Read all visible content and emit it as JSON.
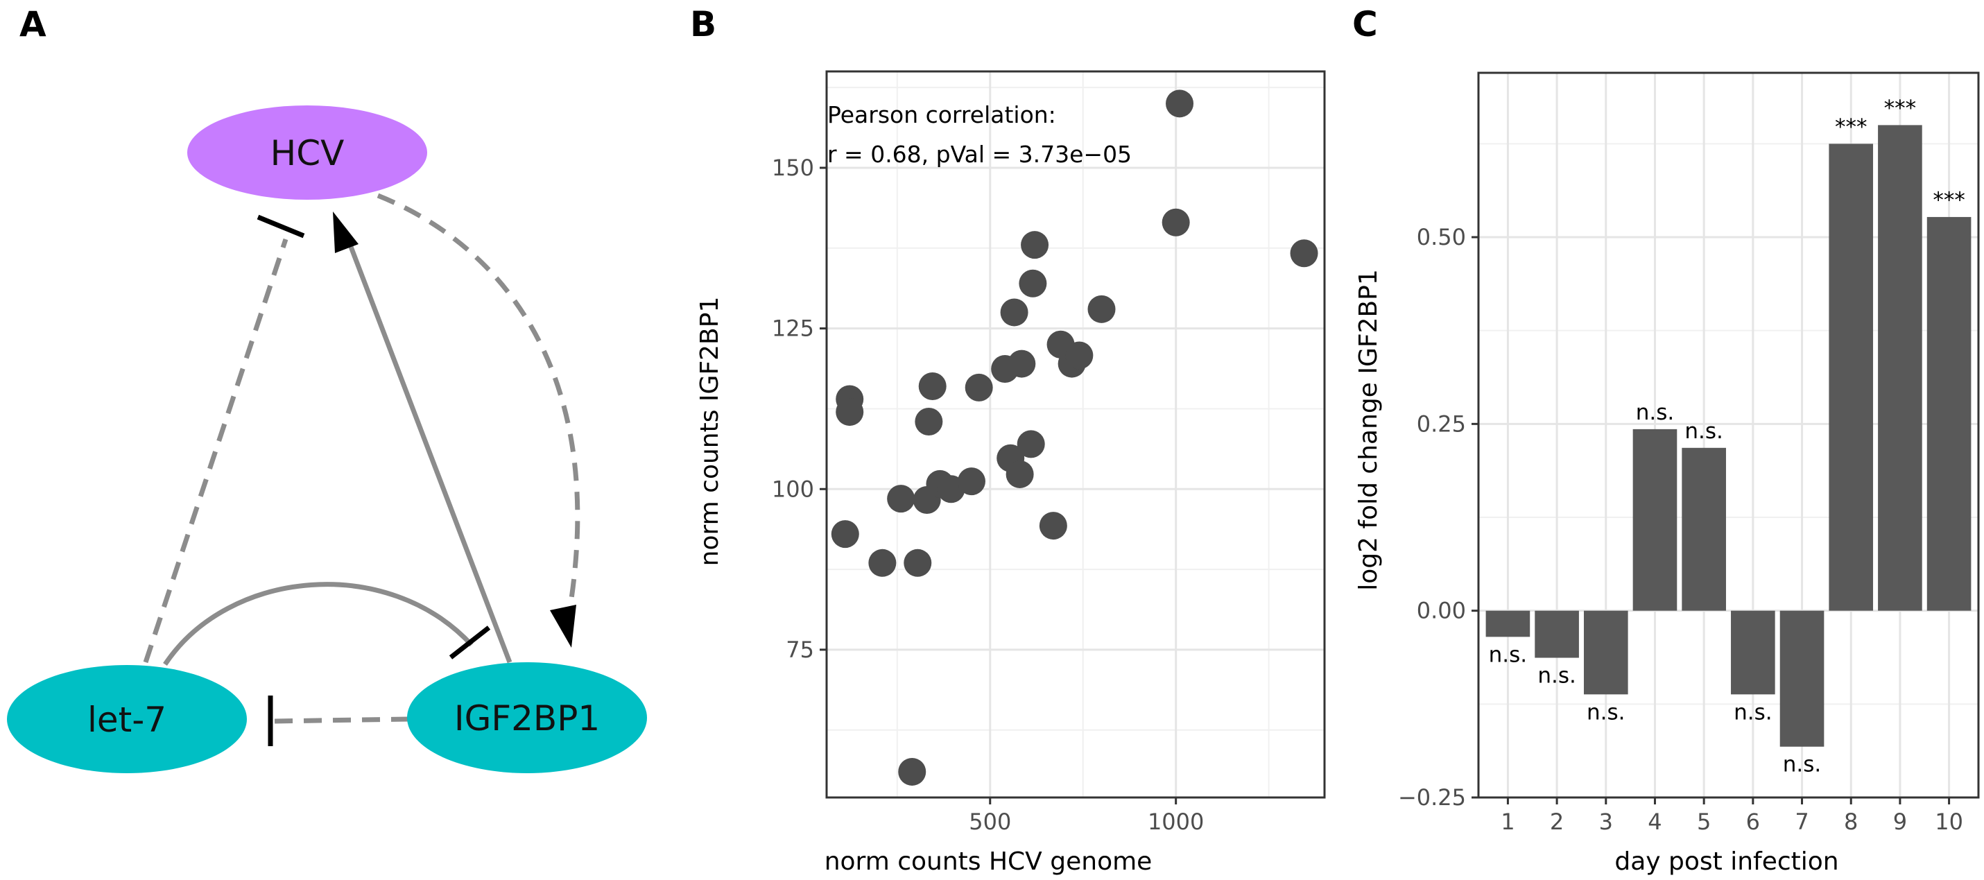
{
  "panels": {
    "a": {
      "letter": "A"
    },
    "b": {
      "letter": "B"
    },
    "c": {
      "letter": "C"
    }
  },
  "diagram": {
    "nodes": {
      "hcv": {
        "label": "HCV",
        "color": "#c77cff"
      },
      "let7": {
        "label": "let-7",
        "color": "#00bfc4"
      },
      "igf2bp1": {
        "label": "IGF2BP1",
        "color": "#00bfc4"
      }
    },
    "edge_color": "#8c8c8c",
    "edges": [
      {
        "from": "let-7",
        "to": "HCV",
        "style": "dashed",
        "type": "inhibition"
      },
      {
        "from": "HCV",
        "to": "IGF2BP1",
        "style": "dashed",
        "type": "activation"
      },
      {
        "from": "IGF2BP1",
        "to": "HCV",
        "style": "solid",
        "type": "activation"
      },
      {
        "from": "let-7",
        "to": "IGF2BP1",
        "style": "solid",
        "type": "inhibition"
      },
      {
        "from": "IGF2BP1",
        "to": "let-7",
        "style": "dashed",
        "type": "inhibition"
      }
    ]
  },
  "chart_data": [
    {
      "type": "scatter",
      "title": "",
      "xlabel": "norm counts HCV genome",
      "ylabel": "norm counts IGF2BP1",
      "xlim": [
        60,
        1400
      ],
      "ylim": [
        52,
        165
      ],
      "xticks": [
        500,
        1000
      ],
      "yticks": [
        75,
        100,
        125,
        150
      ],
      "annotation_line1": "Pearson correlation:",
      "annotation_line2": "r = 0.68, pVal = 3.73e−05",
      "point_color": "#4d4d4d",
      "points": [
        {
          "x": 110,
          "y": 93
        },
        {
          "x": 122,
          "y": 114
        },
        {
          "x": 122,
          "y": 112
        },
        {
          "x": 210,
          "y": 88.5
        },
        {
          "x": 260,
          "y": 98.5
        },
        {
          "x": 290,
          "y": 56
        },
        {
          "x": 305,
          "y": 88.5
        },
        {
          "x": 330,
          "y": 98.3
        },
        {
          "x": 335,
          "y": 110.5
        },
        {
          "x": 345,
          "y": 116
        },
        {
          "x": 365,
          "y": 100.8
        },
        {
          "x": 395,
          "y": 100
        },
        {
          "x": 450,
          "y": 101.2
        },
        {
          "x": 470,
          "y": 115.8
        },
        {
          "x": 540,
          "y": 118.7
        },
        {
          "x": 555,
          "y": 104.8
        },
        {
          "x": 565,
          "y": 127.5
        },
        {
          "x": 580,
          "y": 102.3
        },
        {
          "x": 585,
          "y": 119.5
        },
        {
          "x": 610,
          "y": 107
        },
        {
          "x": 615,
          "y": 132
        },
        {
          "x": 620,
          "y": 138
        },
        {
          "x": 670,
          "y": 94.3
        },
        {
          "x": 690,
          "y": 122.5
        },
        {
          "x": 720,
          "y": 119.5
        },
        {
          "x": 740,
          "y": 120.8
        },
        {
          "x": 800,
          "y": 128
        },
        {
          "x": 1000,
          "y": 141.5
        },
        {
          "x": 1010,
          "y": 160
        },
        {
          "x": 1345,
          "y": 136.7
        }
      ]
    },
    {
      "type": "bar",
      "title": "",
      "xlabel": "day post infection",
      "ylabel": "log2 fold change IGF2BP1",
      "ylim": [
        -0.25,
        0.72
      ],
      "yticks": [
        -0.25,
        0.0,
        0.25,
        0.5
      ],
      "ytick_labels": [
        "−0.25",
        "0.00",
        "0.25",
        "0.50"
      ],
      "categories": [
        "1",
        "2",
        "3",
        "4",
        "5",
        "6",
        "7",
        "8",
        "9",
        "10"
      ],
      "values": [
        -0.035,
        -0.063,
        -0.112,
        0.243,
        0.218,
        -0.112,
        -0.182,
        0.625,
        0.65,
        0.527
      ],
      "significance": [
        "n.s.",
        "n.s.",
        "n.s.",
        "n.s.",
        "n.s.",
        "n.s.",
        "n.s.",
        "***",
        "***",
        "***"
      ],
      "bar_color": "#595959"
    }
  ]
}
